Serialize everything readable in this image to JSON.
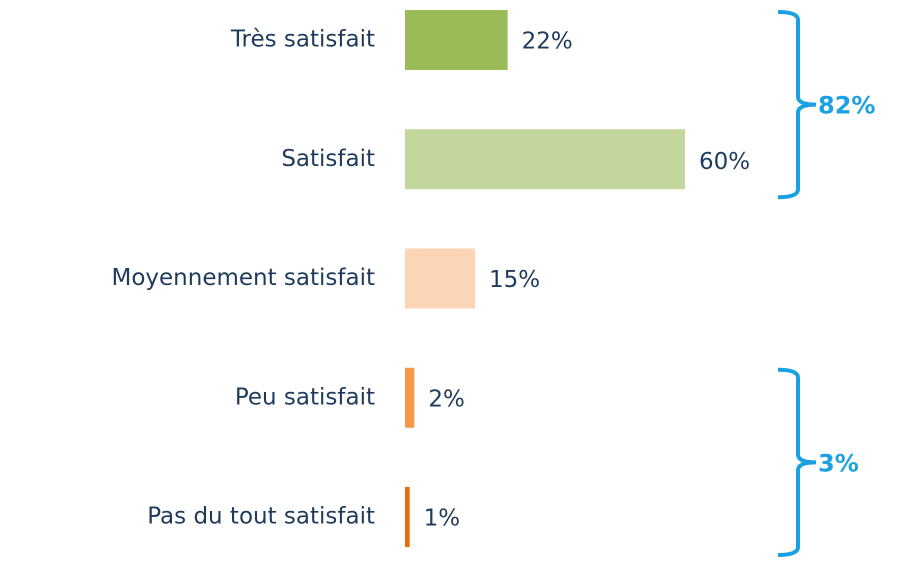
{
  "chart_data": {
    "type": "bar",
    "orientation": "horizontal",
    "categories": [
      "Très satisfait",
      "Satisfait",
      "Moyennement satisfait",
      "Peu satisfait",
      "Pas du tout satisfait"
    ],
    "values": [
      22,
      60,
      15,
      2,
      1
    ],
    "value_labels": [
      "22%",
      "60%",
      "15%",
      "2%",
      "1%"
    ],
    "colors": [
      "#9bbb59",
      "#c3d69b",
      "#fbd5b5",
      "#f79646",
      "#e46c0a"
    ],
    "xlim": [
      0,
      60
    ],
    "annotations": [
      {
        "label": "82%",
        "value": 82,
        "from": "Très satisfait",
        "to": "Satisfait"
      },
      {
        "label": "3%",
        "value": 3,
        "from": "Peu satisfait",
        "to": "Pas du tout satisfait"
      }
    ]
  }
}
